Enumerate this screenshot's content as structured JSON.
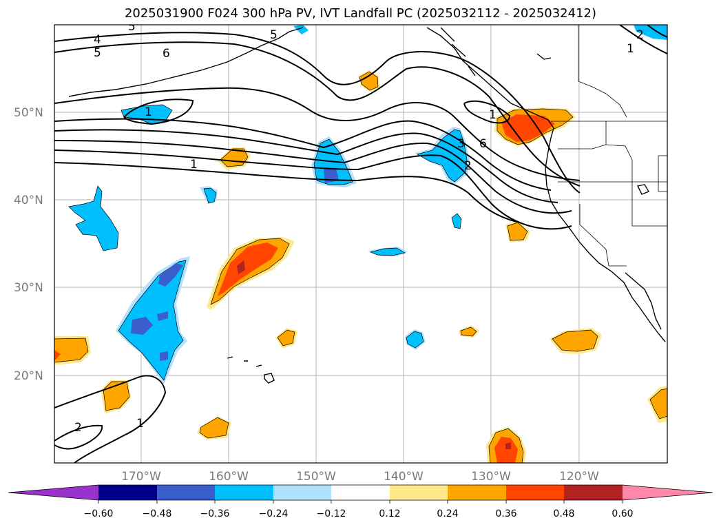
{
  "title": "2025031900 F024 300 hPa PV, IVT Landfall PC (2025032112 - 2025032412)",
  "map": {
    "lat_labels": [
      "50°N",
      "40°N",
      "30°N",
      "20°N"
    ],
    "lon_labels": [
      "170°W",
      "160°W",
      "150°W",
      "140°W",
      "130°W",
      "120°W"
    ],
    "pv_contour_labels": [
      "5",
      "4",
      "5",
      "6",
      "1",
      "1",
      "5",
      "3",
      "6",
      "2",
      "1",
      "2",
      "1",
      "2",
      "1"
    ]
  },
  "colorbar": {
    "ticks": [
      "−0.60",
      "−0.48",
      "−0.36",
      "−0.24",
      "−0.12",
      "0.12",
      "0.24",
      "0.36",
      "0.48",
      "0.60"
    ],
    "colors": [
      "#9933cc",
      "#00008b",
      "#3a5fcd",
      "#00bfff",
      "#b0e2ff",
      "#ffffff",
      "#ffe98a",
      "#ffa500",
      "#ff4500",
      "#b22222",
      "#ff88aa"
    ]
  }
}
